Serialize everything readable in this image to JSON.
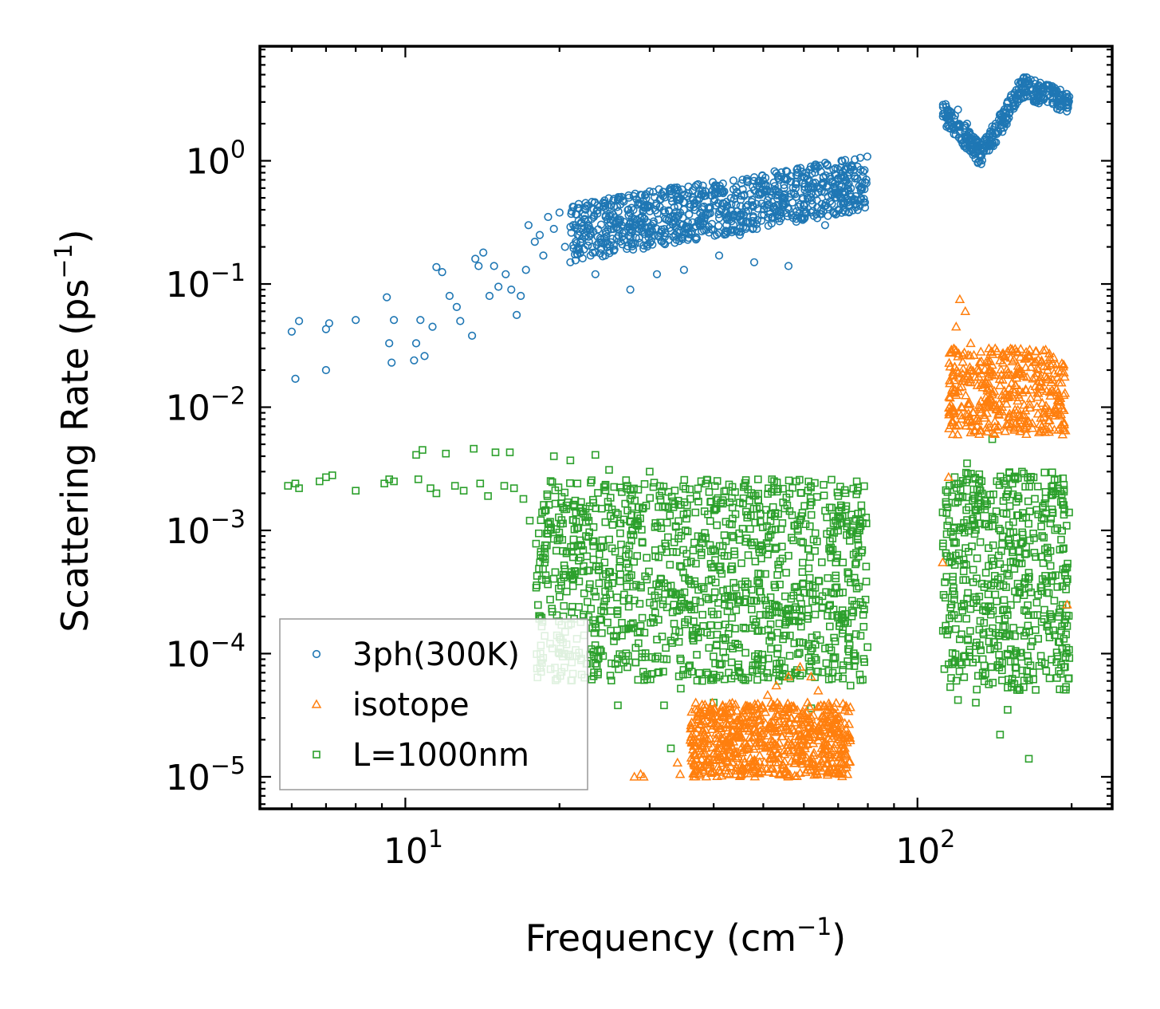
{
  "chart_data": {
    "type": "scatter",
    "title": "",
    "xlabel": "Frequency (cm",
    "xlabel_sup": "−1",
    "xlabel_suffix": ")",
    "ylabel": "Scattering Rate (ps",
    "ylabel_sup": "−1",
    "ylabel_suffix": ")",
    "xscale": "log",
    "yscale": "log",
    "xlim": [
      5.2,
      240
    ],
    "ylim": [
      5.5e-06,
      8.5
    ],
    "x_ticks": [
      {
        "value": 10,
        "base": "10",
        "exp": "1"
      },
      {
        "value": 100,
        "base": "10",
        "exp": "2"
      }
    ],
    "y_ticks": [
      {
        "value": 1,
        "base": "10",
        "exp": "0"
      },
      {
        "value": 0.1,
        "base": "10",
        "exp": "−1"
      },
      {
        "value": 0.01,
        "base": "10",
        "exp": "−2"
      },
      {
        "value": 0.001,
        "base": "10",
        "exp": "−3"
      },
      {
        "value": 0.0001,
        "base": "10",
        "exp": "−4"
      },
      {
        "value": 1e-05,
        "base": "10",
        "exp": "−5"
      }
    ],
    "legend_position": "lower-left",
    "series": [
      {
        "name": "3ph(300K)",
        "marker": "circle",
        "color": "#1f77b4",
        "points": [
          [
            6.0,
            0.041
          ],
          [
            6.2,
            0.05
          ],
          [
            6.1,
            0.017
          ],
          [
            7.0,
            0.043
          ],
          [
            7.1,
            0.048
          ],
          [
            7.0,
            0.02
          ],
          [
            8.0,
            0.051
          ],
          [
            9.2,
            0.078
          ],
          [
            9.3,
            0.033
          ],
          [
            9.5,
            0.051
          ],
          [
            9.4,
            0.023
          ],
          [
            10.5,
            0.033
          ],
          [
            10.7,
            0.051
          ],
          [
            10.4,
            0.024
          ],
          [
            10.9,
            0.026
          ],
          [
            11.3,
            0.045
          ],
          [
            11.5,
            0.137
          ],
          [
            11.8,
            0.125
          ],
          [
            12.2,
            0.08
          ],
          [
            12.6,
            0.065
          ],
          [
            12.8,
            0.05
          ],
          [
            13.5,
            0.038
          ],
          [
            13.7,
            0.16
          ],
          [
            13.9,
            0.14
          ],
          [
            14.2,
            0.18
          ],
          [
            14.6,
            0.08
          ],
          [
            14.9,
            0.14
          ],
          [
            15.2,
            0.095
          ],
          [
            15.7,
            0.12
          ],
          [
            16.1,
            0.09
          ],
          [
            16.5,
            0.056
          ],
          [
            16.8,
            0.08
          ],
          [
            17.2,
            0.13
          ],
          [
            17.4,
            0.3
          ],
          [
            17.9,
            0.22
          ],
          [
            18.3,
            0.25
          ],
          [
            18.6,
            0.17
          ],
          [
            19.0,
            0.35
          ],
          [
            19.5,
            0.28
          ],
          [
            20.0,
            0.38
          ],
          [
            20.5,
            0.2
          ],
          [
            21.0,
            0.15
          ],
          [
            21.5,
            0.3
          ],
          [
            22.0,
            0.22
          ],
          [
            22.5,
            0.4
          ],
          [
            23.0,
            0.17
          ],
          [
            23.5,
            0.12
          ],
          [
            24.5,
            0.45
          ],
          [
            25.0,
            0.3
          ],
          [
            27.5,
            0.09
          ],
          [
            30.0,
            0.43
          ],
          [
            31.0,
            0.12
          ],
          [
            33.0,
            0.5
          ],
          [
            35.0,
            0.13
          ],
          [
            38.0,
            0.42
          ],
          [
            41.0,
            0.17
          ],
          [
            45.0,
            0.25
          ],
          [
            48.0,
            0.15
          ],
          [
            52.0,
            0.35
          ],
          [
            56.0,
            0.14
          ],
          [
            58.0,
            0.32
          ],
          [
            62.0,
            0.38
          ],
          [
            66.0,
            0.3
          ],
          [
            70.0,
            0.55
          ],
          [
            74.0,
            0.85
          ],
          [
            78.0,
            0.6
          ],
          [
            120.0,
            2.6
          ],
          [
            125.0,
            2.0
          ],
          [
            130.0,
            1.5
          ],
          [
            133.0,
            1.1
          ],
          [
            136.0,
            1.3
          ],
          [
            140.0,
            1.9
          ],
          [
            150.0,
            3.0
          ],
          [
            160.0,
            4.3
          ],
          [
            170.0,
            3.6
          ],
          [
            180.0,
            4.1
          ],
          [
            195.0,
            3.0
          ]
        ],
        "bands": [
          {
            "x_range": [
              21.0,
              80.0
            ],
            "y_start": [
              0.15,
              0.45
            ],
            "y_end": [
              0.4,
              1.1
            ],
            "count": 900
          },
          {
            "x_range": [
              112.0,
              198.0
            ],
            "curve": "v-shape",
            "count": 350
          }
        ]
      },
      {
        "name": "isotope",
        "marker": "triangle",
        "color": "#ff7f0e",
        "points": [
          [
            28.0,
            1e-05
          ],
          [
            28.8,
            1.05e-05
          ],
          [
            29.2,
            1e-05
          ],
          [
            34.0,
            1.3e-05
          ],
          [
            34.4,
            1.05e-05
          ],
          [
            37.0,
            1.4e-05
          ],
          [
            38.0,
            1.8e-05
          ],
          [
            40.0,
            2.6e-05
          ],
          [
            41.0,
            2.2e-05
          ],
          [
            43.0,
            2e-05
          ],
          [
            45.0,
            3e-05
          ],
          [
            48.0,
            3.2e-05
          ],
          [
            51.0,
            4.6e-05
          ],
          [
            53.0,
            5.5e-05
          ],
          [
            56.0,
            6.5e-05
          ],
          [
            59.0,
            7.8e-05
          ],
          [
            62.0,
            6.5e-05
          ],
          [
            64.0,
            5e-05
          ],
          [
            67.0,
            2.8e-05
          ],
          [
            71.0,
            1.3e-05
          ],
          [
            73.0,
            1.05e-05
          ],
          [
            112.0,
            0.00055
          ],
          [
            115.0,
            0.0027
          ],
          [
            117.0,
            0.0078
          ],
          [
            119.0,
            0.045
          ],
          [
            121.0,
            0.075
          ],
          [
            124.0,
            0.06
          ],
          [
            127.0,
            0.033
          ],
          [
            132.0,
            0.02
          ],
          [
            136.0,
            0.012
          ],
          [
            140.0,
            0.022
          ],
          [
            145.0,
            0.015
          ],
          [
            150.0,
            0.012
          ],
          [
            158.0,
            0.012
          ],
          [
            163.0,
            0.028
          ],
          [
            168.0,
            0.017
          ],
          [
            175.0,
            0.014
          ],
          [
            182.0,
            0.022
          ],
          [
            187.0,
            0.014
          ],
          [
            192.0,
            0.006
          ],
          [
            196.0,
            0.00025
          ]
        ],
        "bands": [
          {
            "x_range": [
              36.0,
              74.0
            ],
            "y_range": [
              1e-05,
              4e-05
            ],
            "count": 700
          },
          {
            "x_range": [
              115.0,
              195.0
            ],
            "y_range": [
              0.006,
              0.03
            ],
            "count": 400
          }
        ]
      },
      {
        "name": "L=1000nm",
        "marker": "square",
        "color": "#2ca02c",
        "points": [
          [
            5.9,
            0.0023
          ],
          [
            6.1,
            0.0024
          ],
          [
            6.2,
            0.0022
          ],
          [
            6.8,
            0.0025
          ],
          [
            7.0,
            0.0027
          ],
          [
            7.2,
            0.0028
          ],
          [
            8.0,
            0.0021
          ],
          [
            9.1,
            0.0024
          ],
          [
            9.3,
            0.0026
          ],
          [
            9.5,
            0.0025
          ],
          [
            10.5,
            0.0041
          ],
          [
            10.6,
            0.0026
          ],
          [
            10.8,
            0.0045
          ],
          [
            11.2,
            0.0022
          ],
          [
            11.5,
            0.002
          ],
          [
            12.0,
            0.0042
          ],
          [
            12.5,
            0.0023
          ],
          [
            13.0,
            0.0021
          ],
          [
            13.6,
            0.0046
          ],
          [
            14.0,
            0.0024
          ],
          [
            14.5,
            0.0019
          ],
          [
            15.0,
            0.0043
          ],
          [
            15.6,
            0.0023
          ],
          [
            16.0,
            0.0043
          ],
          [
            16.3,
            0.0022
          ],
          [
            17.0,
            0.0018
          ],
          [
            17.5,
            0.0012
          ],
          [
            18.0,
            0.00078
          ],
          [
            18.5,
            0.0014
          ],
          [
            19.0,
            0.001
          ],
          [
            19.5,
            0.004
          ],
          [
            20.0,
            0.00029
          ],
          [
            20.0,
            0.000135
          ],
          [
            21.0,
            0.0037
          ],
          [
            22.0,
            0.00018
          ],
          [
            22.5,
            0.0015
          ],
          [
            23.5,
            0.0041
          ],
          [
            24.0,
            0.00019
          ],
          [
            25.0,
            0.0031
          ],
          [
            26.0,
            3.8e-05
          ],
          [
            27.0,
            0.0007
          ],
          [
            28.0,
            0.00027
          ],
          [
            29.0,
            0.0001
          ],
          [
            30.0,
            0.003
          ],
          [
            31.0,
            0.00013
          ],
          [
            32.0,
            3.8e-05
          ],
          [
            33.0,
            1.7e-05
          ],
          [
            34.5,
            5.2e-05
          ],
          [
            36.0,
            0.0018
          ],
          [
            38.0,
            6e-05
          ],
          [
            40.0,
            4e-05
          ],
          [
            42.0,
            0.00025
          ],
          [
            45.0,
            7e-05
          ],
          [
            48.0,
            0.0008
          ],
          [
            52.0,
            0.0026
          ],
          [
            55.0,
            0.00014
          ],
          [
            58.0,
            0.0025
          ],
          [
            62.0,
            3.6e-05
          ],
          [
            66.0,
            0.00011
          ],
          [
            70.0,
            6.5e-05
          ],
          [
            74.0,
            5.5e-05
          ],
          [
            76.0,
            0.00025
          ],
          [
            112.0,
            0.0014
          ],
          [
            117.0,
            8.2e-05
          ],
          [
            120.0,
            4.2e-05
          ],
          [
            125.0,
            0.0035
          ],
          [
            130.0,
            4e-05
          ],
          [
            135.0,
            8e-05
          ],
          [
            140.0,
            0.0055
          ],
          [
            145.0,
            2.2e-05
          ],
          [
            150.0,
            3.5e-05
          ],
          [
            155.0,
            0.00032
          ],
          [
            160.0,
            0.003
          ],
          [
            165.0,
            1.4e-05
          ],
          [
            172.0,
            0.0003
          ],
          [
            180.0,
            0.0006
          ],
          [
            188.0,
            0.0022
          ],
          [
            196.0,
            0.0005
          ]
        ],
        "bands": [
          {
            "x_range": [
              18.0,
              80.0
            ],
            "y_range": [
              6e-05,
              0.0026
            ],
            "count": 1200
          },
          {
            "x_range": [
              112.0,
              198.0
            ],
            "y_range": [
              5e-05,
              0.003
            ],
            "count": 550
          }
        ]
      }
    ]
  }
}
